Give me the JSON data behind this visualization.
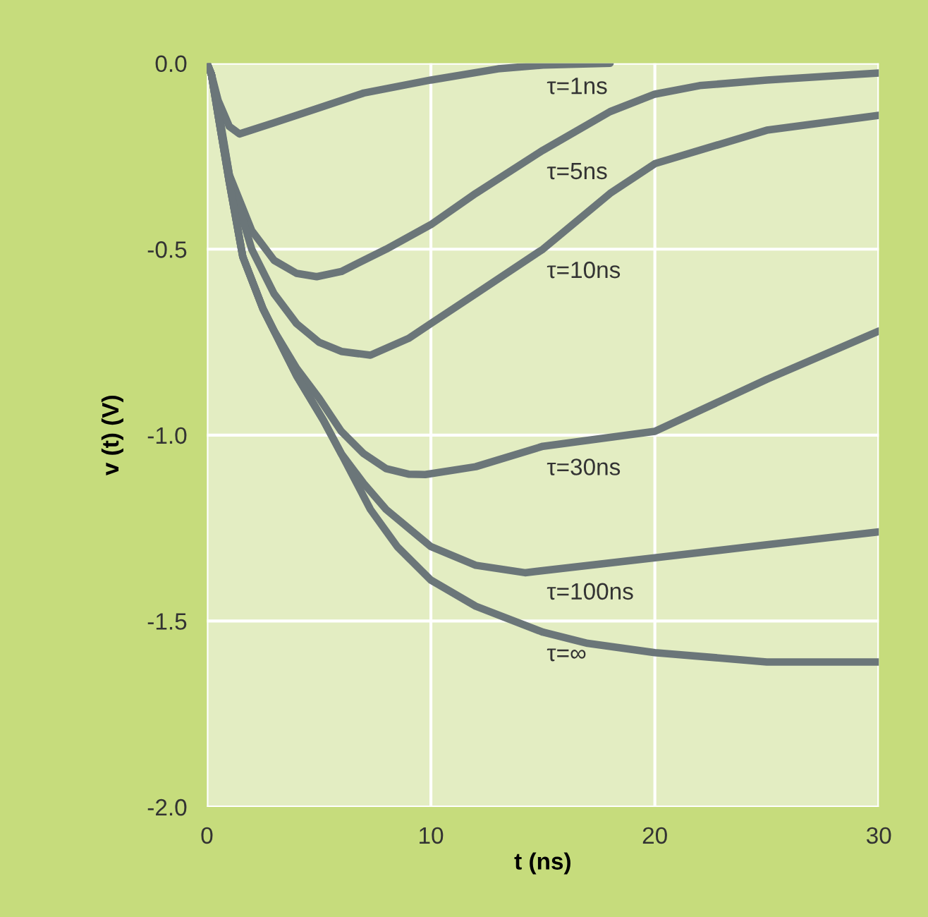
{
  "chart_data": {
    "type": "line",
    "xlabel": "t (ns)",
    "ylabel": "v (t) (V)",
    "xlim": [
      0,
      30
    ],
    "xticks": [
      0,
      10,
      20,
      30
    ],
    "ylim": [
      -2.0,
      0.0
    ],
    "yticks": [
      {
        "value": -2.0,
        "label": "-2.0"
      },
      {
        "value": -1.5,
        "label": "-1.5"
      },
      {
        "value": -1.0,
        "label": "-1.0"
      },
      {
        "value": -0.5,
        "label": "-0.5"
      },
      {
        "value": 0.0,
        "label": "0.0"
      }
    ],
    "grid": true,
    "marker": "none",
    "line_style": "solid",
    "series": [
      {
        "name": "τ=1ns",
        "color": "#6b7679",
        "x": [
          0,
          0.2,
          0.5,
          1,
          1.45,
          3,
          5,
          7,
          10,
          13,
          15,
          18
        ],
        "values": [
          0,
          -0.03,
          -0.1,
          -0.17,
          -0.19,
          -0.16,
          -0.12,
          -0.08,
          -0.045,
          -0.015,
          -0.005,
          0
        ]
      },
      {
        "name": "τ=5ns",
        "color": "#6b7679",
        "x": [
          0,
          0.2,
          0.5,
          1,
          2,
          3,
          4,
          4.9,
          6,
          8,
          10,
          12,
          15,
          18,
          20,
          22,
          25,
          30
        ],
        "values": [
          0,
          -0.03,
          -0.12,
          -0.3,
          -0.45,
          -0.53,
          -0.565,
          -0.574,
          -0.56,
          -0.5,
          -0.434,
          -0.35,
          -0.234,
          -0.13,
          -0.083,
          -0.06,
          -0.045,
          -0.026
        ]
      },
      {
        "name": "τ=10ns",
        "color": "#6b7679",
        "x": [
          0,
          0.2,
          0.5,
          1,
          2,
          3,
          4,
          5,
          6,
          7.3,
          9,
          10,
          12,
          15,
          18,
          20,
          25,
          30
        ],
        "values": [
          0,
          -0.03,
          -0.13,
          -0.3,
          -0.5,
          -0.62,
          -0.7,
          -0.75,
          -0.775,
          -0.785,
          -0.74,
          -0.7,
          -0.62,
          -0.5,
          -0.35,
          -0.27,
          -0.18,
          -0.14
        ]
      },
      {
        "name": "τ=30ns",
        "color": "#6b7679",
        "x": [
          0,
          0.2,
          0.5,
          1,
          1.6,
          2.5,
          3,
          4,
          5,
          6,
          7,
          8,
          9,
          9.75,
          12,
          15,
          20,
          25,
          30
        ],
        "values": [
          0,
          -0.03,
          -0.14,
          -0.32,
          -0.52,
          -0.66,
          -0.72,
          -0.82,
          -0.9,
          -0.99,
          -1.05,
          -1.09,
          -1.105,
          -1.106,
          -1.085,
          -1.03,
          -0.99,
          -0.85,
          -0.72
        ]
      },
      {
        "name": "τ=100ns",
        "color": "#6b7679",
        "x": [
          0,
          0.2,
          0.5,
          1,
          1.6,
          2.5,
          3,
          4,
          5.2,
          6,
          7,
          8,
          10,
          12,
          14.2,
          20,
          25,
          30
        ],
        "values": [
          0,
          -0.03,
          -0.14,
          -0.32,
          -0.52,
          -0.66,
          -0.72,
          -0.84,
          -0.96,
          -1.05,
          -1.13,
          -1.2,
          -1.3,
          -1.35,
          -1.37,
          -1.33,
          -1.295,
          -1.26
        ]
      },
      {
        "name": "τ=∞",
        "color": "#6b7679",
        "x": [
          0,
          0.2,
          0.5,
          1,
          1.6,
          2.5,
          3,
          4,
          5.2,
          6,
          7.3,
          8.5,
          10,
          12,
          15,
          17,
          20,
          25,
          30
        ],
        "values": [
          0,
          -0.03,
          -0.14,
          -0.32,
          -0.52,
          -0.66,
          -0.72,
          -0.84,
          -0.96,
          -1.05,
          -1.2,
          -1.3,
          -1.39,
          -1.46,
          -1.53,
          -1.56,
          -1.585,
          -1.61,
          -1.61
        ]
      }
    ]
  }
}
